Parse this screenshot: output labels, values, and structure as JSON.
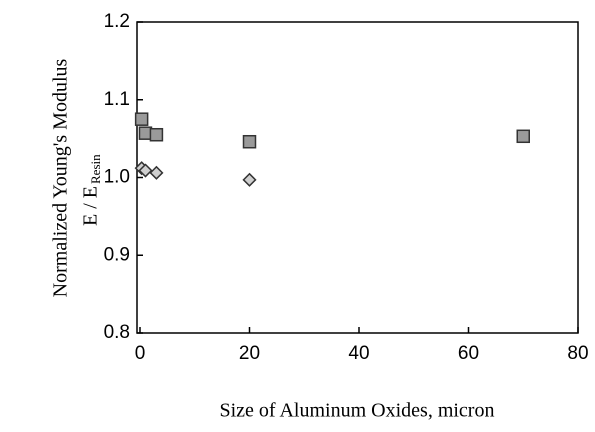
{
  "chart_data": {
    "type": "scatter",
    "xlabel": "Size of Aluminum Oxides, micron",
    "ylabel": "Normalized Young's Modulus",
    "ylabel2": "E / E",
    "ylabel_sub": "Resin",
    "xlim": [
      0,
      80
    ],
    "xticks": [
      0,
      20,
      40,
      60,
      80
    ],
    "ylim": [
      0.8,
      1.2
    ],
    "yticks": [
      0.8,
      0.9,
      {
        "value": 1,
        "label": "1.0"
      },
      1.1,
      1.2
    ],
    "series": [
      {
        "color": "#9a9a9a",
        "marker": "square",
        "x": [
          0.3,
          1,
          3,
          20,
          70
        ],
        "values": [
          1.075,
          1.057,
          1.055,
          1.046,
          1.053
        ]
      },
      {
        "color": "#cfcfcf",
        "marker": "diamond",
        "x": [
          0.3,
          1,
          3,
          20
        ],
        "values": [
          1.012,
          1.009,
          1.006,
          0.997
        ]
      }
    ]
  }
}
